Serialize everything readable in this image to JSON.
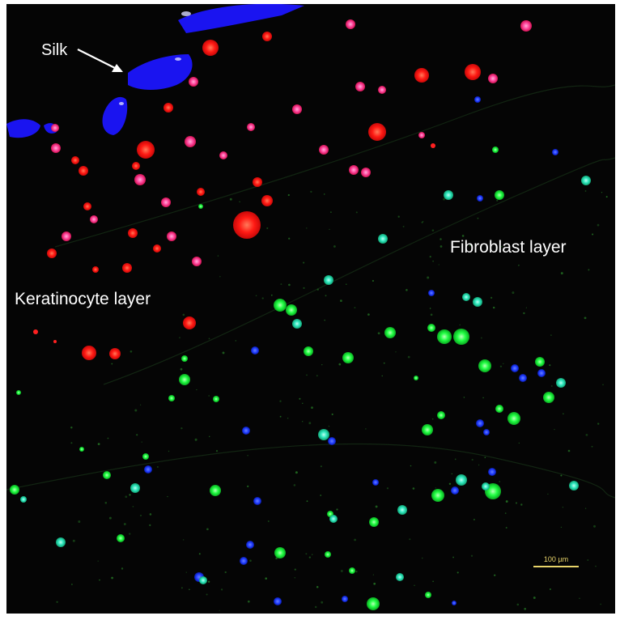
{
  "labels": {
    "silk": "Silk",
    "fibroblast_layer": "Fibroblast layer",
    "keratinocyte_layer": "Keratinocyte layer"
  },
  "scale_bar": {
    "text": "100 µm",
    "color": "#e8d46a"
  },
  "colors": {
    "background": "#050505",
    "silk": "#1a14f0",
    "keratinocyte_red": "#ff1414",
    "keratinocyte_magenta": "#ff50a0",
    "fibroblast_green": "#1aff3c",
    "fibroblast_cyan": "#28e6be",
    "nucleus_blue": "#1e3cff"
  }
}
